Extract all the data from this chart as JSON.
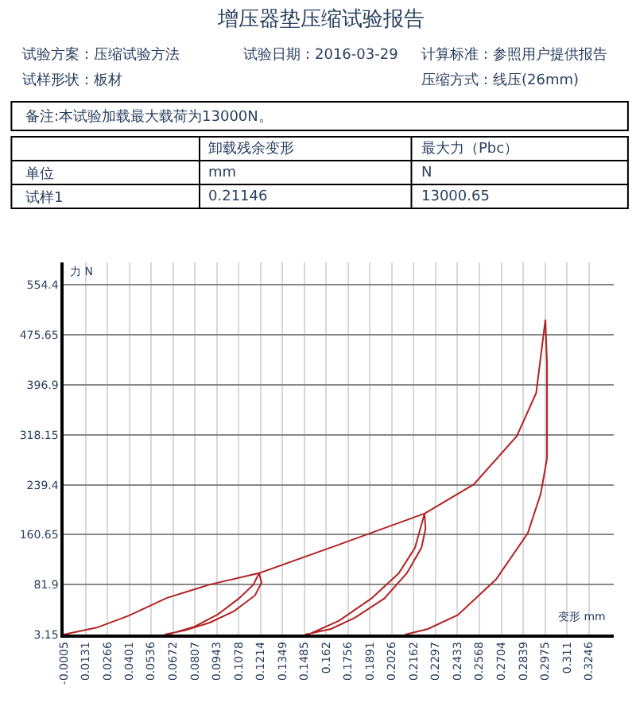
{
  "chart_data": {
    "type": "line",
    "title": "增压器垫压缩试验报告",
    "xlabel": "变形 mm",
    "ylabel": "力 N",
    "annotations": [
      "试验方案：压缩试验方法",
      "试验日期：2016-03-29",
      "计算标准：参照用户提供报告",
      "试样形状：板材",
      "压缩方式：线压(26mm)",
      "备注:本试验加载最大载荷为13000N。",
      "卸载残余变形",
      "最大力（Pbc）",
      "单位",
      "mm",
      "N",
      "试样1",
      "0.21146",
      "13000.65"
    ],
    "series": [
      {
        "color": "#b22222",
        "x": [
          -0.0005,
          0.02,
          0.04,
          0.0635,
          0.09,
          0.1205,
          0.122,
          0.118,
          0.105,
          0.09,
          0.075,
          0.062,
          0.064,
          0.08,
          0.095,
          0.108,
          0.117,
          0.1205,
          0.17,
          0.2229,
          0.2235,
          0.221,
          0.212,
          0.198,
          0.18,
          0.165,
          0.149,
          0.151,
          0.17,
          0.19,
          0.207,
          0.217,
          0.2229,
          0.2534,
          0.28,
          0.292,
          0.2977,
          0.2987,
          0.2987,
          0.2948,
          0.2868,
          0.2671,
          0.2435,
          0.225,
          0.211
        ],
        "values": [
          3.15,
          14,
          33,
          61,
          82,
          100,
          85,
          65,
          40,
          22,
          10,
          3.15,
          3.15,
          15,
          35,
          60,
          82,
          100,
          145,
          194,
          170,
          140,
          100,
          60,
          30,
          12,
          3.15,
          3.15,
          25,
          60,
          100,
          140,
          194,
          240,
          316,
          384,
          500,
          430,
          281,
          225,
          163,
          90,
          34,
          12,
          3.15
        ]
      }
    ],
    "xlim": [
      -0.0005,
      0.34
    ],
    "ylim": [
      3.15,
      590
    ],
    "xticks": [
      -0.0005,
      0.0131,
      0.0266,
      0.0401,
      0.0536,
      0.0672,
      0.0807,
      0.0943,
      0.1078,
      0.1214,
      0.1349,
      0.1485,
      0.162,
      0.1756,
      0.1891,
      0.2026,
      0.2162,
      0.2297,
      0.2433,
      0.2568,
      0.2704,
      0.2839,
      0.2975,
      0.311,
      0.3246
    ],
    "yticks": [
      3.15,
      81.9,
      160.65,
      239.4,
      318.15,
      396.9,
      475.65,
      554.4
    ],
    "grid": true,
    "marker": "none",
    "line_style": "solid"
  }
}
